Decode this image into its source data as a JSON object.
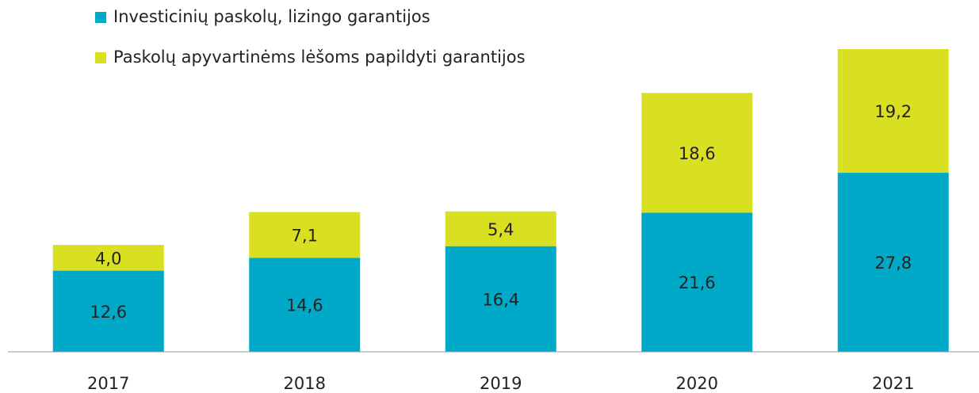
{
  "chart_data": {
    "type": "stacked_bar",
    "categories": [
      "2017",
      "2018",
      "2019",
      "2020",
      "2021"
    ],
    "series": [
      {
        "name": "Investicinių paskolų, lizingo garantijos",
        "color": "#00a9c8",
        "values": [
          12.6,
          14.6,
          16.4,
          21.6,
          27.8
        ],
        "value_labels": [
          "12,6",
          "14,6",
          "16,4",
          "21,6",
          "27,8"
        ]
      },
      {
        "name": "Paskolų apyvartinėms lėšoms papildyti garantijos",
        "color": "#d9e021",
        "values": [
          4.0,
          7.1,
          5.4,
          18.6,
          19.2
        ],
        "value_labels": [
          "4,0",
          "7,1",
          "5,4",
          "18,6",
          "19,2"
        ]
      }
    ]
  }
}
